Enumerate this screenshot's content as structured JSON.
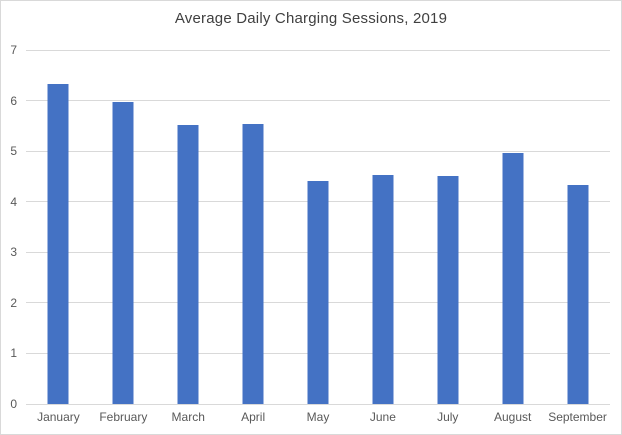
{
  "chart_data": {
    "type": "bar",
    "title": "Average Daily Charging Sessions, 2019",
    "categories": [
      "January",
      "February",
      "March",
      "April",
      "May",
      "June",
      "July",
      "August",
      "September"
    ],
    "values": [
      6.33,
      5.97,
      5.52,
      5.54,
      4.41,
      4.53,
      4.51,
      4.96,
      4.33
    ],
    "xlabel": "",
    "ylabel": "",
    "ylim": [
      0,
      7
    ],
    "yticks": [
      0,
      1,
      2,
      3,
      4,
      5,
      6,
      7
    ],
    "grid": true,
    "legend_position": "none",
    "colors": {
      "bar": "#4472C4",
      "gridline": "#D9D9D9",
      "axis_line": "#D9D9D9",
      "title_text": "#404040",
      "tick_text": "#595959",
      "background": "#FFFFFF",
      "frame_border": "#D9D9D9"
    }
  }
}
